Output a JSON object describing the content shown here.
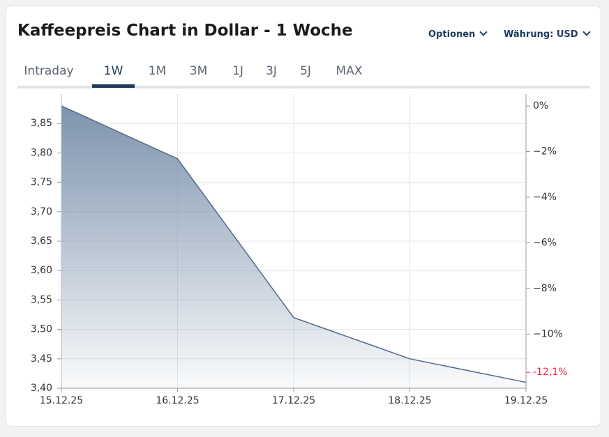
{
  "header": {
    "title": "Kaffeepreis Chart in Dollar - 1 Woche",
    "options": "Optionen",
    "currency": "Währung: USD"
  },
  "tabs": {
    "items": [
      "Intraday",
      "1W",
      "1M",
      "3M",
      "1J",
      "3J",
      "5J",
      "MAX"
    ],
    "active": 1
  },
  "chart_data": {
    "type": "area",
    "categories": [
      "15.12.25",
      "16.12.25",
      "17.12.25",
      "18.12.25",
      "19.12.25"
    ],
    "series": [
      {
        "name": "Kaffeepreis",
        "color": "#4f6a8a",
        "values": [
          3.88,
          3.79,
          3.52,
          3.45,
          3.41
        ]
      }
    ],
    "ylim": [
      3.4,
      3.9
    ],
    "yticks": [
      {
        "value": 3.4,
        "label": "3,40"
      },
      {
        "value": 3.45,
        "label": "3,45"
      },
      {
        "value": 3.5,
        "label": "3,50"
      },
      {
        "value": 3.55,
        "label": "3,55"
      },
      {
        "value": 3.6,
        "label": "3,60"
      },
      {
        "value": 3.65,
        "label": "3,65"
      },
      {
        "value": 3.7,
        "label": "3,70"
      },
      {
        "value": 3.75,
        "label": "3,75"
      },
      {
        "value": 3.8,
        "label": "3,80"
      },
      {
        "value": 3.85,
        "label": "3,85"
      }
    ],
    "y2lim": [
      -12.37,
      0.52
    ],
    "y2ticks": [
      {
        "value": 0,
        "label": "0%"
      },
      {
        "value": -2,
        "label": "−2%"
      },
      {
        "value": -4,
        "label": "−4%"
      },
      {
        "value": -6,
        "label": "−6%"
      },
      {
        "value": -8,
        "label": "−8%"
      },
      {
        "value": -10,
        "label": "−10%"
      }
    ],
    "annotation": {
      "value": -12.1,
      "label": "-12,1%",
      "color": "#e0314b"
    },
    "grid": true
  }
}
